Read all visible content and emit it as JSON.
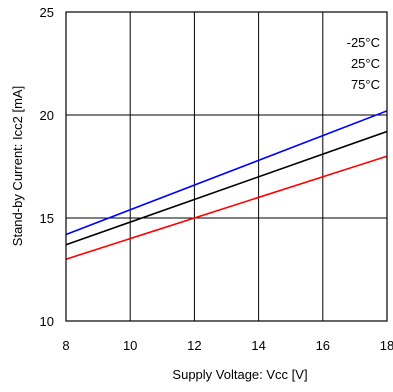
{
  "chart_data": {
    "type": "line",
    "xlabel": "Supply Voltage: Vcc [V]",
    "ylabel": "Stand-by Current: Icc2 [mA]",
    "xlim": [
      8,
      18
    ],
    "ylim": [
      10,
      25
    ],
    "xticks": [
      8,
      10,
      12,
      14,
      16,
      18
    ],
    "yticks": [
      10,
      15,
      20,
      25
    ],
    "grid": true,
    "legend_position": "top-right",
    "legend_entries": [
      "-25°C",
      "25°C",
      "75°C"
    ],
    "series": [
      {
        "label": "-25°C",
        "color": "#0000ff",
        "x": [
          8,
          18
        ],
        "y": [
          14.2,
          20.2
        ]
      },
      {
        "label": "25°C",
        "color": "#000000",
        "x": [
          8,
          18
        ],
        "y": [
          13.7,
          19.2
        ]
      },
      {
        "label": "75°C",
        "color": "#ff0000",
        "x": [
          8,
          18
        ],
        "y": [
          13.0,
          18.0
        ]
      }
    ]
  }
}
